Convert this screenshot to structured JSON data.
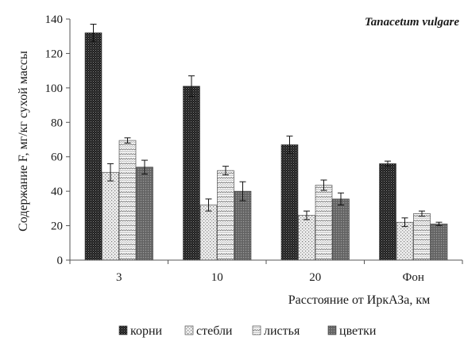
{
  "chart_data": {
    "type": "bar",
    "title": "Tanacetum vulgare",
    "xlabel": "Расстояние от ИркАЗа, км",
    "ylabel": "Содержание F, мг/кг сухой массы",
    "categories": [
      "3",
      "10",
      "20",
      "Фон"
    ],
    "ylim": [
      0,
      140
    ],
    "yticks": [
      0,
      20,
      40,
      60,
      80,
      100,
      120,
      140
    ],
    "grid": false,
    "legend_position": "bottom",
    "series": [
      {
        "name": "корни",
        "pattern": "dense-dark",
        "values": [
          132,
          101,
          67,
          56
        ],
        "errors": [
          5,
          6,
          5,
          1.5
        ]
      },
      {
        "name": "стебли",
        "pattern": "light-dots",
        "values": [
          51,
          32,
          26,
          22
        ],
        "errors": [
          5,
          3.5,
          2.5,
          2.5
        ]
      },
      {
        "name": "листья",
        "pattern": "zigzag-white",
        "values": [
          69.5,
          52,
          43.5,
          27
        ],
        "errors": [
          1.5,
          2.5,
          3,
          1.5
        ]
      },
      {
        "name": "цветки",
        "pattern": "medium-gray",
        "values": [
          54,
          40,
          35.5,
          21
        ],
        "errors": [
          4,
          5.5,
          3.5,
          1
        ]
      }
    ]
  }
}
